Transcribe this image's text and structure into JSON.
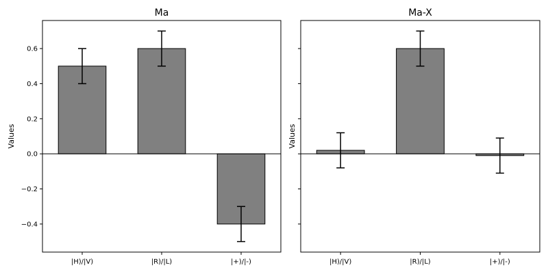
{
  "chart_data": [
    {
      "type": "bar",
      "title": "Ma",
      "xlabel": "",
      "ylabel": "Values",
      "ylim": [
        -0.56,
        0.76
      ],
      "yticks": [
        -0.4,
        -0.2,
        0.0,
        0.2,
        0.4,
        0.6
      ],
      "ytick_labels": [
        "−0.4",
        "−0.2",
        "0.0",
        "0.2",
        "0.4",
        "0.6"
      ],
      "show_ytick_labels": true,
      "categories": [
        "|H)/|V)",
        "|R)/|L)",
        "|+)/|-)"
      ],
      "values": [
        0.5,
        0.6,
        -0.4
      ],
      "errors": [
        0.1,
        0.1,
        0.1
      ],
      "bar_color": "#808080",
      "edge_color": "#000000",
      "grid": false
    },
    {
      "type": "bar",
      "title": "Ma-X",
      "xlabel": "",
      "ylabel": "Values",
      "ylim": [
        -0.56,
        0.76
      ],
      "yticks": [
        -0.4,
        -0.2,
        0.0,
        0.2,
        0.4,
        0.6
      ],
      "ytick_labels": [
        "−0.4",
        "−0.2",
        "0.0",
        "0.2",
        "0.4",
        "0.6"
      ],
      "show_ytick_labels": false,
      "categories": [
        "|H)/|V)",
        "|R)/|L)",
        "|+)/|-)"
      ],
      "values": [
        0.02,
        0.6,
        -0.01
      ],
      "errors": [
        0.1,
        0.1,
        0.1
      ],
      "bar_color": "#808080",
      "edge_color": "#000000",
      "grid": false
    }
  ]
}
